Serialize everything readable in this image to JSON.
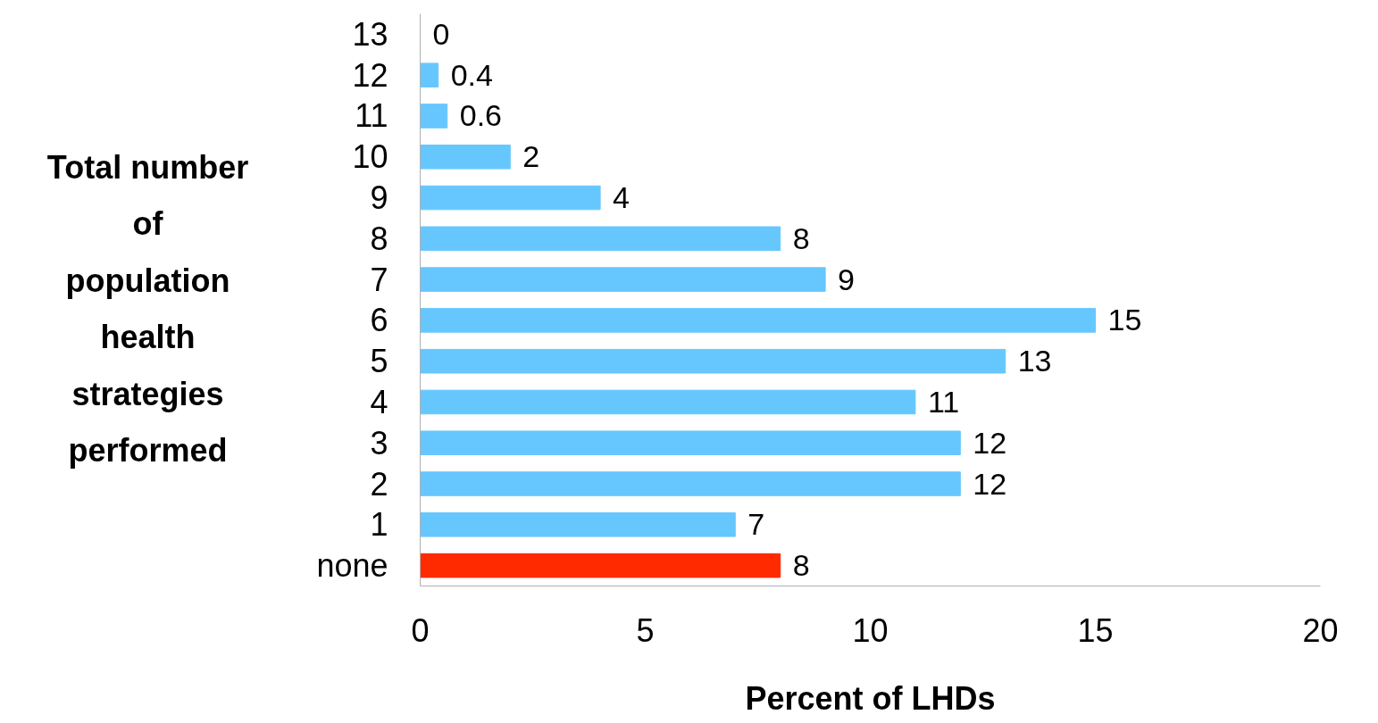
{
  "chart_data": {
    "type": "bar",
    "orientation": "horizontal",
    "xlabel": "Percent of LHDs",
    "ylabel": "Total number of population health strategies performed",
    "categories": [
      "13",
      "12",
      "11",
      "10",
      "9",
      "8",
      "7",
      "6",
      "5",
      "4",
      "3",
      "2",
      "1",
      "none"
    ],
    "values": [
      0,
      0.4,
      0.6,
      2,
      4,
      8,
      9,
      15,
      13,
      11,
      12,
      12,
      7,
      8
    ],
    "colors": [
      "#66c7ff",
      "#66c7ff",
      "#66c7ff",
      "#66c7ff",
      "#66c7ff",
      "#66c7ff",
      "#66c7ff",
      "#66c7ff",
      "#66c7ff",
      "#66c7ff",
      "#66c7ff",
      "#66c7ff",
      "#66c7ff",
      "#ff2a00"
    ],
    "xlim": [
      0,
      20
    ],
    "xticks": [
      0,
      5,
      10,
      15,
      20
    ],
    "data_labels": true,
    "grid": false
  }
}
